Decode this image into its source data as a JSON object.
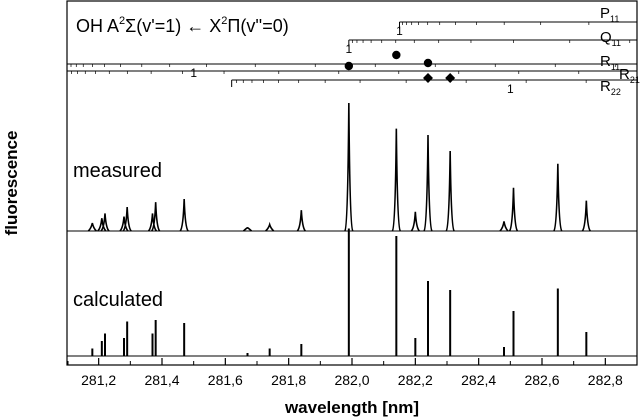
{
  "chart_data": {
    "type": "line",
    "title": {
      "prefix": "OH A",
      "sup1": "2",
      "mid1": "Σ(v'=1) ← X",
      "sup2": "2",
      "suffix": "Π(v''=0)"
    },
    "xlabel": "wavelength [nm]",
    "ylabel": "fluorescence",
    "xlim": [
      281.1,
      282.9
    ],
    "ylim": [
      0,
      1
    ],
    "x_ticks": [
      281.2,
      281.4,
      281.6,
      281.8,
      282.0,
      282.2,
      282.4,
      282.6,
      282.8
    ],
    "x_tick_labels": [
      "281,2",
      "281,4",
      "281,6",
      "281,8",
      "282,0",
      "282,2",
      "282,4",
      "282,6",
      "282,8"
    ],
    "grid": false,
    "branches": [
      {
        "name": "P",
        "sub": "11",
        "start": 282.15,
        "end": 282.9,
        "label_1_at": 282.15
      },
      {
        "name": "Q",
        "sub": "11",
        "start": 281.99,
        "end": 282.9,
        "label_1_at": 281.99
      },
      {
        "name": "R",
        "sub": "11",
        "start": 281.1,
        "end": 282.9,
        "label_1_at": 281.5
      },
      {
        "name": "R",
        "sub": "21",
        "start": 281.1,
        "end": 282.9,
        "label_1_at": null
      },
      {
        "name": "R",
        "sub": "22",
        "start": 281.62,
        "end": 282.9,
        "label_1_at": 282.5
      }
    ],
    "series": [
      {
        "name": "measured",
        "baseline": 0.0,
        "x": [
          281.18,
          281.21,
          281.22,
          281.28,
          281.29,
          281.37,
          281.38,
          281.47,
          281.67,
          281.74,
          281.84,
          281.99,
          282.14,
          282.2,
          282.24,
          282.31,
          282.48,
          282.51,
          282.65,
          282.74
        ],
        "values": [
          0.05,
          0.08,
          0.11,
          0.09,
          0.15,
          0.11,
          0.18,
          0.2,
          0.02,
          0.04,
          0.13,
          0.8,
          0.64,
          0.12,
          0.6,
          0.5,
          0.06,
          0.27,
          0.42,
          0.19
        ]
      },
      {
        "name": "calculated",
        "baseline": 0.0,
        "x": [
          281.18,
          281.21,
          281.22,
          281.28,
          281.29,
          281.37,
          281.38,
          281.47,
          281.67,
          281.74,
          281.84,
          281.99,
          282.14,
          282.2,
          282.24,
          282.31,
          282.48,
          282.51,
          282.65,
          282.74
        ],
        "values": [
          0.05,
          0.1,
          0.15,
          0.12,
          0.23,
          0.15,
          0.24,
          0.22,
          0.02,
          0.05,
          0.08,
          0.85,
          0.8,
          0.12,
          0.5,
          0.44,
          0.06,
          0.3,
          0.45,
          0.16
        ]
      }
    ],
    "annotations": {
      "dots": [
        281.99,
        282.14,
        282.24
      ],
      "diamonds": [
        282.24,
        282.31
      ]
    }
  }
}
